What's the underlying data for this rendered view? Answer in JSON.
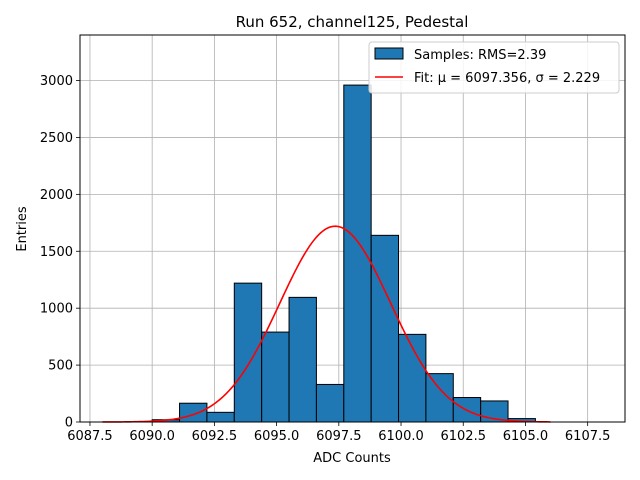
{
  "chart_data": {
    "type": "bar",
    "title": "Run 652, channel125, Pedestal",
    "xlabel": "ADC Counts",
    "ylabel": "Entries",
    "xlim": [
      6087.1,
      6109.0
    ],
    "ylim": [
      0,
      3400
    ],
    "xticks": [
      6087.5,
      6090.0,
      6092.5,
      6095.0,
      6097.5,
      6100.0,
      6102.5,
      6105.0,
      6107.5
    ],
    "xtick_labels": [
      "6087.5",
      "6090.0",
      "6092.5",
      "6095.0",
      "6097.5",
      "6100.0",
      "6102.5",
      "6105.0",
      "6107.5"
    ],
    "yticks": [
      0,
      500,
      1000,
      1500,
      2000,
      2500,
      3000
    ],
    "ytick_labels": [
      "0",
      "500",
      "1000",
      "1500",
      "2000",
      "2500",
      "3000"
    ],
    "grid": true,
    "legend_position": "top-right",
    "bar_color": "#1f77b4",
    "fit_color": "#ff0000",
    "bins": [
      {
        "left": 6090.0,
        "right": 6091.1,
        "value": 20
      },
      {
        "left": 6091.1,
        "right": 6092.2,
        "value": 165
      },
      {
        "left": 6092.2,
        "right": 6093.3,
        "value": 85
      },
      {
        "left": 6093.3,
        "right": 6094.4,
        "value": 1220
      },
      {
        "left": 6094.4,
        "right": 6095.5,
        "value": 790
      },
      {
        "left": 6095.5,
        "right": 6096.6,
        "value": 1095
      },
      {
        "left": 6096.6,
        "right": 6097.7,
        "value": 330
      },
      {
        "left": 6097.7,
        "right": 6098.8,
        "value": 2960
      },
      {
        "left": 6098.8,
        "right": 6099.9,
        "value": 1640
      },
      {
        "left": 6099.9,
        "right": 6101.0,
        "value": 770
      },
      {
        "left": 6101.0,
        "right": 6102.1,
        "value": 425
      },
      {
        "left": 6102.1,
        "right": 6103.2,
        "value": 215
      },
      {
        "left": 6103.2,
        "right": 6104.3,
        "value": 185
      },
      {
        "left": 6104.3,
        "right": 6105.4,
        "value": 30
      }
    ],
    "fit": {
      "mu": 6097.356,
      "sigma": 2.229,
      "amplitude": 1720,
      "x_range": [
        6088.0,
        6106.0
      ]
    },
    "legend": [
      {
        "label": "Samples: RMS=2.39",
        "kind": "bar"
      },
      {
        "label": "Fit: μ = 6097.356, σ = 2.229",
        "kind": "line"
      }
    ]
  }
}
